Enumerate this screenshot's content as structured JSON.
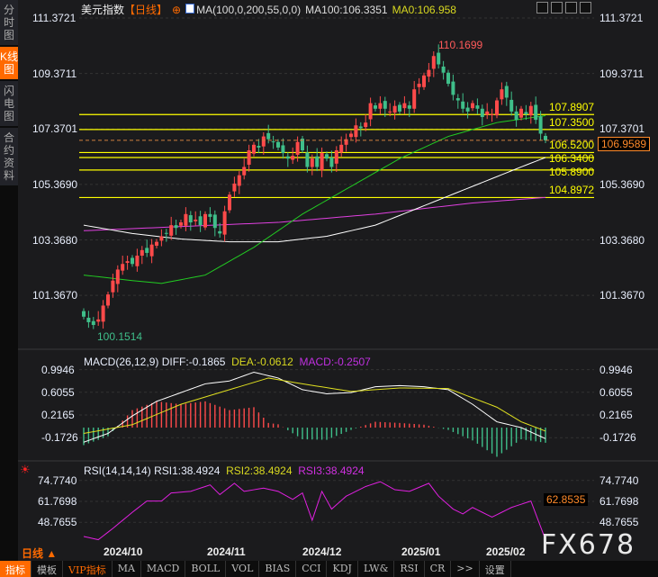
{
  "sidebar": {
    "tabs": [
      {
        "label": "分时图",
        "active": false
      },
      {
        "label": "K线图",
        "active": true
      },
      {
        "label": "闪电图",
        "active": false
      },
      {
        "label": "合约资料",
        "active": false
      }
    ]
  },
  "header": {
    "name": "美元指数",
    "period": "【日线】",
    "ma_formula": "MA(100,0,200,55,0,0)",
    "ma100": "MA100:106.3351",
    "ma0": "MA0:106.958"
  },
  "toolbar_icons": [
    "crosshair-icon",
    "zoom-range-icon",
    "play-icon",
    "jump-end-icon"
  ],
  "price_axis": {
    "ticks": [
      "111.3721",
      "109.3711",
      "107.3701",
      "105.3690",
      "103.3680",
      "101.3670"
    ],
    "values": [
      111.3721,
      109.3711,
      107.3701,
      105.369,
      103.368,
      101.367
    ],
    "current": "106.9589"
  },
  "annotations": {
    "high": "110.1699",
    "low": "100.1514"
  },
  "hlines": [
    {
      "label": "107.8907",
      "value": 107.8907
    },
    {
      "label": "107.3500",
      "value": 107.35
    },
    {
      "label": "106.5200",
      "value": 106.52
    },
    {
      "label": "106.3400",
      "value": 106.34
    },
    {
      "label": "105.8900",
      "value": 105.89
    },
    {
      "label": "104.8972",
      "value": 104.8972
    }
  ],
  "colors": {
    "up": "#ff4a4a",
    "down": "#3fbf8a",
    "ma100": "#ffffff",
    "ma55": "#22cc22",
    "ma200": "#e040e0",
    "hline": "#ffff00",
    "accent": "#ff6a00"
  },
  "candles_close": [
    100.6,
    100.4,
    100.3,
    100.5,
    101.0,
    101.4,
    101.9,
    102.3,
    102.5,
    102.6,
    102.5,
    102.8,
    103.0,
    102.9,
    103.2,
    103.3,
    103.5,
    103.6,
    103.9,
    103.8,
    104.0,
    104.3,
    104.0,
    104.1,
    103.9,
    104.3,
    104.2,
    103.8,
    103.6,
    104.4,
    105.0,
    105.4,
    105.7,
    106.0,
    106.6,
    106.8,
    106.7,
    107.1,
    107.0,
    106.9,
    106.7,
    106.5,
    106.3,
    106.4,
    106.9,
    106.6,
    106.0,
    106.3,
    106.0,
    106.5,
    106.3,
    106.0,
    106.6,
    106.8,
    107.0,
    107.2,
    107.5,
    107.4,
    107.6,
    108.3,
    108.1,
    108.3,
    108.1,
    108.0,
    108.2,
    108.0,
    108.3,
    108.1,
    108.8,
    109.0,
    109.3,
    109.5,
    110.0,
    109.7,
    109.4,
    109.0,
    108.6,
    108.4,
    108.1,
    108.0,
    108.3,
    108.1,
    107.8,
    108.0,
    107.9,
    108.4,
    108.8,
    108.5,
    108.0,
    107.7,
    108.1,
    107.9,
    108.2,
    107.7,
    107.2,
    106.96
  ],
  "ma_lines": {
    "ma100": [
      [
        0,
        103.9
      ],
      [
        10,
        103.6
      ],
      [
        20,
        103.4
      ],
      [
        30,
        103.3
      ],
      [
        40,
        103.3
      ],
      [
        50,
        103.5
      ],
      [
        60,
        103.9
      ],
      [
        70,
        104.6
      ],
      [
        80,
        105.3
      ],
      [
        90,
        106.0
      ],
      [
        95,
        106.34
      ]
    ],
    "ma55": [
      [
        0,
        102.1
      ],
      [
        10,
        101.9
      ],
      [
        16,
        101.8
      ],
      [
        25,
        102.1
      ],
      [
        35,
        103.1
      ],
      [
        45,
        104.3
      ],
      [
        55,
        105.3
      ],
      [
        65,
        106.3
      ],
      [
        75,
        107.1
      ],
      [
        85,
        107.6
      ],
      [
        95,
        107.85
      ]
    ],
    "ma200": [
      [
        0,
        103.7
      ],
      [
        40,
        104.0
      ],
      [
        60,
        104.3
      ],
      [
        80,
        104.7
      ],
      [
        95,
        104.9
      ]
    ]
  },
  "macd": {
    "title": "MACD(26,12,9)",
    "diff_label": "DIFF:-0.1865",
    "dea_label": "DEA:-0.0612",
    "macd_label": "MACD:-0.2507",
    "ticks": [
      "0.9946",
      "0.6055",
      "0.2165",
      "-0.1726"
    ],
    "tick_values": [
      0.9946,
      0.6055,
      0.2165,
      -0.1726
    ],
    "diff": [
      [
        0,
        -0.25
      ],
      [
        5,
        -0.1
      ],
      [
        10,
        0.2
      ],
      [
        15,
        0.45
      ],
      [
        20,
        0.6
      ],
      [
        25,
        0.75
      ],
      [
        30,
        0.8
      ],
      [
        35,
        0.95
      ],
      [
        40,
        0.85
      ],
      [
        45,
        0.65
      ],
      [
        50,
        0.58
      ],
      [
        55,
        0.6
      ],
      [
        60,
        0.7
      ],
      [
        65,
        0.72
      ],
      [
        70,
        0.7
      ],
      [
        75,
        0.65
      ],
      [
        80,
        0.4
      ],
      [
        85,
        0.1
      ],
      [
        90,
        0.0
      ],
      [
        95,
        -0.19
      ]
    ],
    "dea": [
      [
        0,
        -0.1
      ],
      [
        10,
        0.05
      ],
      [
        20,
        0.4
      ],
      [
        30,
        0.65
      ],
      [
        38,
        0.85
      ],
      [
        45,
        0.75
      ],
      [
        55,
        0.62
      ],
      [
        65,
        0.68
      ],
      [
        75,
        0.67
      ],
      [
        85,
        0.35
      ],
      [
        90,
        0.1
      ],
      [
        95,
        -0.06
      ]
    ]
  },
  "rsi": {
    "title": "RSI(14,14,14)",
    "rsi1": "RSI1:38.4924",
    "rsi2": "RSI2:38.4924",
    "rsi3": "RSI3:38.4924",
    "ticks": [
      "74.7740",
      "61.7698",
      "48.7655"
    ],
    "tick_values": [
      74.774,
      61.7698,
      48.7655
    ],
    "current": "62.8535",
    "values": [
      [
        0,
        40
      ],
      [
        3,
        38
      ],
      [
        6,
        45
      ],
      [
        10,
        55
      ],
      [
        13,
        62
      ],
      [
        16,
        62
      ],
      [
        18,
        67
      ],
      [
        22,
        68
      ],
      [
        26,
        72
      ],
      [
        28,
        66
      ],
      [
        31,
        73
      ],
      [
        33,
        68
      ],
      [
        37,
        70
      ],
      [
        40,
        68
      ],
      [
        43,
        63
      ],
      [
        45,
        67
      ],
      [
        47,
        50
      ],
      [
        49,
        68
      ],
      [
        51,
        57
      ],
      [
        54,
        65
      ],
      [
        58,
        71
      ],
      [
        61,
        74
      ],
      [
        64,
        69
      ],
      [
        67,
        68
      ],
      [
        71,
        73
      ],
      [
        73,
        65
      ],
      [
        76,
        57
      ],
      [
        78,
        54
      ],
      [
        80,
        58
      ],
      [
        84,
        52
      ],
      [
        88,
        58
      ],
      [
        92,
        62
      ],
      [
        95,
        38
      ]
    ]
  },
  "time_axis": {
    "period": "日线",
    "labels": [
      "2024/10",
      "2024/11",
      "2024/12",
      "2025/01",
      "2025/02"
    ]
  },
  "bottom_tabs": [
    "指标",
    "模板",
    "VIP指标",
    "MA",
    "MACD",
    "BOLL",
    "VOL",
    "BIAS",
    "CCI",
    "KDJ",
    "LW&",
    "RSI",
    "CR",
    ">>",
    "设置"
  ],
  "watermark": "FX678"
}
